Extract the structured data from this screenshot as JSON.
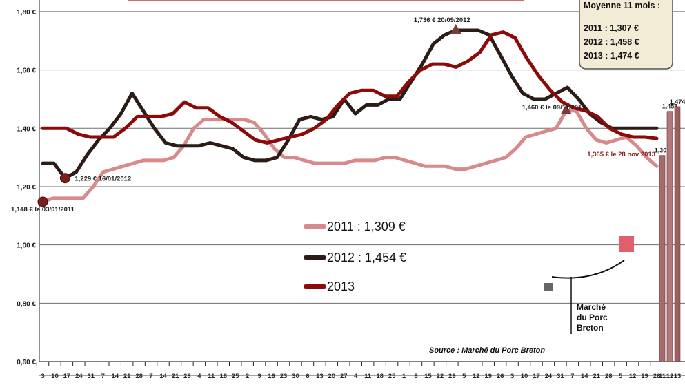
{
  "chart_data": {
    "type": "line",
    "ylim": [
      0.6,
      1.84
    ],
    "y_ticks": [
      "0,60 €",
      "0,80 €",
      "1,00 €",
      "1,20 €",
      "1,40 €",
      "1,60 €",
      "1,80 €"
    ],
    "y_tick_values": [
      0.6,
      0.8,
      1.0,
      1.2,
      1.4,
      1.6,
      1.8
    ],
    "x_ticks": [
      "3",
      "10",
      "17",
      "24",
      "31",
      "7",
      "14",
      "21",
      "28",
      "7",
      "14",
      "21",
      "28",
      "4",
      "11",
      "18",
      "25",
      "2",
      "9",
      "16",
      "23",
      "30",
      "6",
      "13",
      "20",
      "27",
      "4",
      "11",
      "18",
      "25",
      "1",
      "8",
      "15",
      "22",
      "29",
      "5",
      "12",
      "19",
      "26",
      "3",
      "10",
      "17",
      "24",
      "31",
      "7",
      "14",
      "21",
      "28",
      "5",
      "12",
      "19",
      "26"
    ],
    "grid": true,
    "series": [
      {
        "name": "2011 : 1,309 €",
        "color": "#d68a8a",
        "values": [
          1.148,
          1.16,
          1.16,
          1.16,
          1.16,
          1.2,
          1.25,
          1.26,
          1.27,
          1.28,
          1.29,
          1.29,
          1.29,
          1.3,
          1.34,
          1.4,
          1.43,
          1.43,
          1.43,
          1.43,
          1.43,
          1.42,
          1.38,
          1.33,
          1.3,
          1.3,
          1.29,
          1.28,
          1.28,
          1.28,
          1.28,
          1.29,
          1.29,
          1.29,
          1.3,
          1.3,
          1.29,
          1.28,
          1.27,
          1.27,
          1.27,
          1.26,
          1.26,
          1.27,
          1.28,
          1.29,
          1.3,
          1.33,
          1.37,
          1.38,
          1.39,
          1.4,
          1.46,
          1.46,
          1.4,
          1.36,
          1.35,
          1.36,
          1.37,
          1.34,
          1.3,
          1.27
        ]
      },
      {
        "name": "2012 : 1,454 €",
        "color": "#2b1c17",
        "values": [
          1.28,
          1.28,
          1.229,
          1.25,
          1.31,
          1.36,
          1.4,
          1.45,
          1.52,
          1.46,
          1.4,
          1.35,
          1.34,
          1.34,
          1.34,
          1.35,
          1.34,
          1.33,
          1.3,
          1.29,
          1.29,
          1.3,
          1.36,
          1.43,
          1.44,
          1.43,
          1.44,
          1.5,
          1.45,
          1.48,
          1.48,
          1.5,
          1.5,
          1.56,
          1.62,
          1.69,
          1.72,
          1.736,
          1.736,
          1.736,
          1.72,
          1.65,
          1.58,
          1.52,
          1.5,
          1.5,
          1.52,
          1.54,
          1.5,
          1.45,
          1.42,
          1.4,
          1.4,
          1.4,
          1.4,
          1.4
        ]
      },
      {
        "name": "2013",
        "color": "#8b0b0b",
        "values": [
          1.4,
          1.4,
          1.4,
          1.38,
          1.37,
          1.37,
          1.37,
          1.4,
          1.44,
          1.44,
          1.44,
          1.45,
          1.49,
          1.47,
          1.47,
          1.44,
          1.42,
          1.39,
          1.36,
          1.35,
          1.36,
          1.37,
          1.38,
          1.4,
          1.43,
          1.48,
          1.52,
          1.53,
          1.53,
          1.51,
          1.51,
          1.56,
          1.6,
          1.62,
          1.62,
          1.61,
          1.63,
          1.66,
          1.72,
          1.73,
          1.71,
          1.64,
          1.58,
          1.53,
          1.49,
          1.47,
          1.46,
          1.44,
          1.4,
          1.38,
          1.37,
          1.37,
          1.365
        ]
      }
    ],
    "annotations": [
      {
        "text": "1,148 € le 03/01/2011",
        "series": 0,
        "point": 0
      },
      {
        "text": "1,229 € 16/01/2012",
        "series": 1,
        "point": 2
      },
      {
        "text": "1,736 € 20/09/2012",
        "series": 1,
        "point": 37
      },
      {
        "text": "1,460 € le 09/11/2011",
        "series": 0,
        "point": 52
      },
      {
        "text": "1,365 € le 28 nov 2013",
        "series": 2,
        "point": 52
      }
    ],
    "averages_box": {
      "title": "Moyenne 11 mois :",
      "rows": [
        "2011 :  1,307 €",
        "2012 :  1,458 €",
        "2013 :  1,474 €"
      ]
    },
    "average_bars": {
      "categories": [
        "11",
        "12",
        "13"
      ],
      "values": [
        1.307,
        1.458,
        1.474
      ],
      "labels": [
        "1,307",
        "1,458",
        "1,474"
      ]
    },
    "source": "Source : Marché du Porc Breton",
    "logo_text": [
      "Marché",
      "du Porc",
      "Breton"
    ]
  }
}
